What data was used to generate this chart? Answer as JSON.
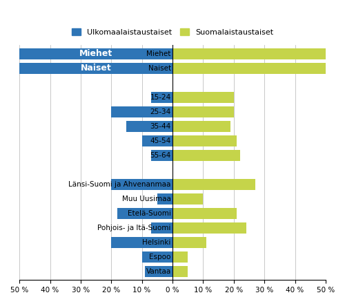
{
  "categories": [
    "Miehet",
    "Naiset",
    "",
    "15-24",
    "25-34",
    "35-44",
    "45-54",
    "55-64",
    " ",
    "Länsi-Suomi ja Ahvenanmaa",
    "Muu Uusimaa",
    "Etelä-Suomi",
    "Pohjois- ja Itä-Suomi",
    "Helsinki",
    "Espoo",
    "Vantaa"
  ],
  "blue_values": [
    50,
    50,
    0,
    7,
    20,
    15,
    10,
    7,
    0,
    20,
    5,
    18,
    7,
    20,
    10,
    9
  ],
  "green_values": [
    50,
    50,
    0,
    20,
    20,
    19,
    21,
    22,
    0,
    27,
    10,
    21,
    24,
    11,
    5,
    5
  ],
  "blue_color": "#2E75B6",
  "green_color": "#C5D44A",
  "legend_blue": "Ulkomaalaistaustaiset",
  "legend_green": "Suomalaistaustaiset",
  "miehet_label": "Miehet",
  "naiset_label": "Naiset",
  "xtick_positions": [
    -50,
    -40,
    -30,
    -20,
    -10,
    0,
    10,
    20,
    30,
    40,
    50
  ],
  "xtick_labels": [
    "50 %",
    "40 %",
    "30 %",
    "20 %",
    "10 %",
    "0 %",
    "10 %",
    "20 %",
    "30 %",
    "40 %",
    "50 %"
  ]
}
